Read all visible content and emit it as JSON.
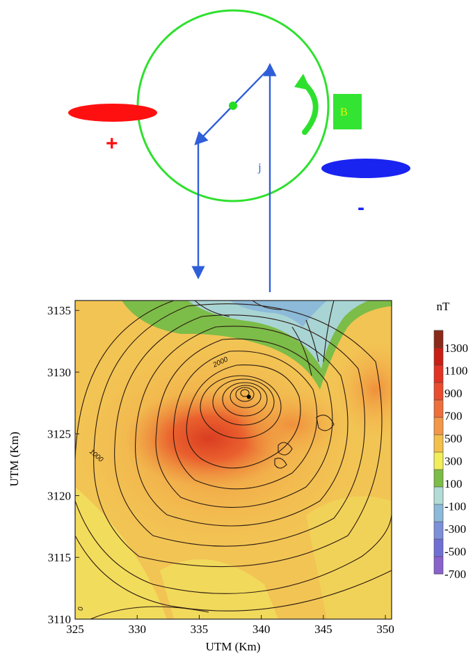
{
  "diagram": {
    "plus_sign": "+",
    "minus_sign": "-",
    "current_label": "j",
    "field_label": "B",
    "colors": {
      "loop": "#2ee02e",
      "current": "#2f5fd8",
      "positive_charge": "#ff1010",
      "negative_charge": "#1a24f0",
      "field_box": "#33e433",
      "field_label_text": "#f0f000",
      "pivot": "#22dd22"
    }
  },
  "map": {
    "x_label": "UTM (Km)",
    "y_label": "UTM (Km)",
    "x_ticks": [
      "325",
      "330",
      "335",
      "340",
      "345",
      "350"
    ],
    "y_ticks": [
      "3135",
      "3130",
      "3125",
      "3120",
      "3115",
      "3110"
    ],
    "x_range": [
      325,
      350.5
    ],
    "y_range": [
      3110,
      3135.8
    ],
    "contour_labels": [
      "2000",
      "1000",
      "0",
      "0"
    ],
    "peak_location": [
      339,
      3128
    ],
    "colorbar": {
      "unit": "nT",
      "labels": [
        "1300",
        "1100",
        "900",
        "700",
        "500",
        "300",
        "100",
        "-100",
        "-300",
        "-500",
        "-700"
      ],
      "colors": [
        "#8b2a1a",
        "#c81e14",
        "#e23222",
        "#ea4c2e",
        "#ee6e3c",
        "#f29848",
        "#f4c04c",
        "#f2ee5a",
        "#7cbc48",
        "#b4dcd6",
        "#8cbad8",
        "#7c90d8",
        "#7070d4",
        "#8a62cc"
      ]
    }
  }
}
